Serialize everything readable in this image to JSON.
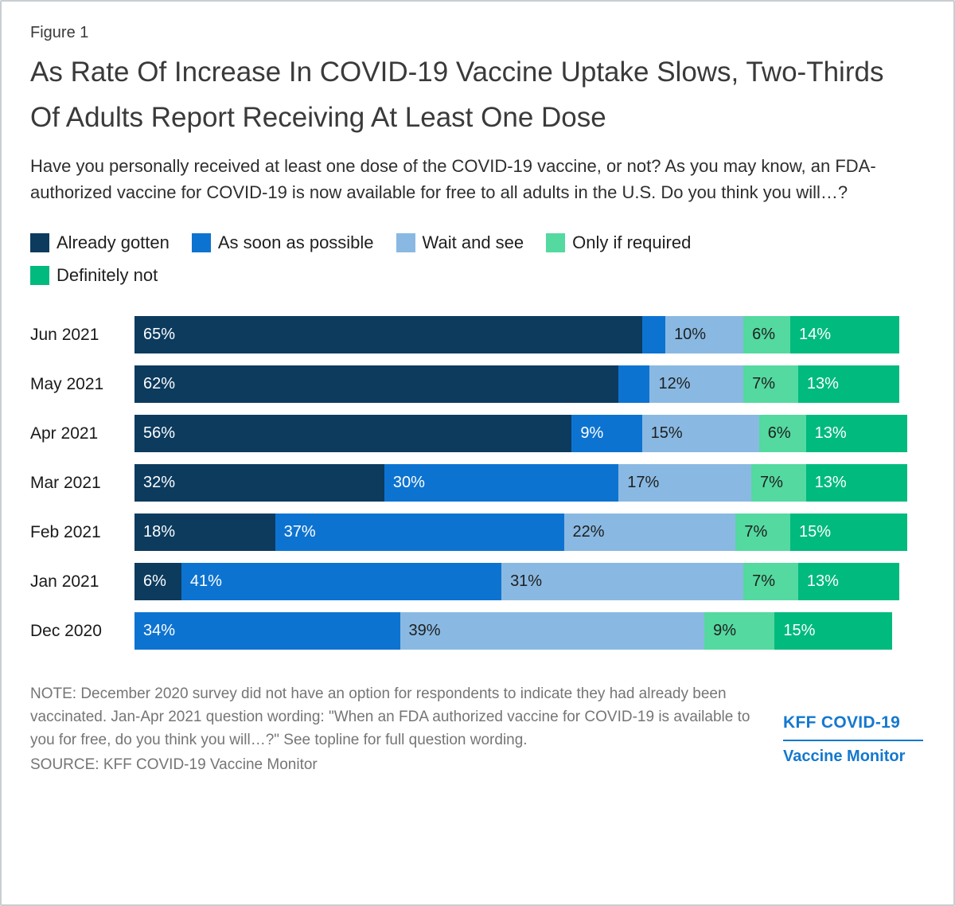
{
  "figure_label": "Figure 1",
  "title": "As Rate Of Increase In COVID-19 Vaccine Uptake Slows, Two-Thirds Of Adults Report Receiving At Least One Dose",
  "subtitle": "Have you personally received at least one dose of the COVID-19 vaccine, or not? As you may know, an FDA-authorized vaccine for COVID-19 is now available for free to all adults in the U.S. Do you think you will…?",
  "legend": [
    {
      "label": "Already gotten",
      "color": "#0c3b5e",
      "text_color": "#ffffff"
    },
    {
      "label": "As soon as possible",
      "color": "#0d73d1",
      "text_color": "#ffffff"
    },
    {
      "label": "Wait and see",
      "color": "#89b9e2",
      "text_color": "#1f1f1f"
    },
    {
      "label": "Only if required",
      "color": "#54d9a0",
      "text_color": "#1f1f1f"
    },
    {
      "label": "Definitely not",
      "color": "#00ba7e",
      "text_color": "#ffffff"
    }
  ],
  "chart_data": {
    "type": "bar",
    "orientation": "horizontal-stacked",
    "value_format": "percent",
    "x_axis_range": [
      0,
      100
    ],
    "grid": false,
    "legend_position": "top",
    "categories": [
      "Jun 2021",
      "May 2021",
      "Apr 2021",
      "Mar 2021",
      "Feb 2021",
      "Jan 2021",
      "Dec 2020"
    ],
    "series": [
      {
        "name": "Already gotten",
        "values": [
          65,
          62,
          56,
          32,
          18,
          6,
          null
        ]
      },
      {
        "name": "As soon as possible",
        "values": [
          3,
          4,
          9,
          30,
          37,
          41,
          34
        ]
      },
      {
        "name": "Wait and see",
        "values": [
          10,
          12,
          15,
          17,
          22,
          31,
          39
        ]
      },
      {
        "name": "Only if required",
        "values": [
          6,
          7,
          6,
          7,
          7,
          7,
          9
        ]
      },
      {
        "name": "Definitely not",
        "values": [
          14,
          13,
          13,
          13,
          15,
          13,
          15
        ]
      }
    ],
    "rows": [
      {
        "category": "Jun 2021",
        "segments": [
          {
            "series": "Already gotten",
            "value": 65,
            "label": "65%"
          },
          {
            "series": "As soon as possible",
            "value": 3,
            "label": ""
          },
          {
            "series": "Wait and see",
            "value": 10,
            "label": "10%"
          },
          {
            "series": "Only if required",
            "value": 6,
            "label": "6%"
          },
          {
            "series": "Definitely not",
            "value": 14,
            "label": "14%"
          }
        ]
      },
      {
        "category": "May 2021",
        "segments": [
          {
            "series": "Already gotten",
            "value": 62,
            "label": "62%"
          },
          {
            "series": "As soon as possible",
            "value": 4,
            "label": ""
          },
          {
            "series": "Wait and see",
            "value": 12,
            "label": "12%"
          },
          {
            "series": "Only if required",
            "value": 7,
            "label": "7%"
          },
          {
            "series": "Definitely not",
            "value": 13,
            "label": "13%"
          }
        ]
      },
      {
        "category": "Apr 2021",
        "segments": [
          {
            "series": "Already gotten",
            "value": 56,
            "label": "56%"
          },
          {
            "series": "As soon as possible",
            "value": 9,
            "label": "9%"
          },
          {
            "series": "Wait and see",
            "value": 15,
            "label": "15%"
          },
          {
            "series": "Only if required",
            "value": 6,
            "label": "6%"
          },
          {
            "series": "Definitely not",
            "value": 13,
            "label": "13%"
          }
        ]
      },
      {
        "category": "Mar 2021",
        "segments": [
          {
            "series": "Already gotten",
            "value": 32,
            "label": "32%"
          },
          {
            "series": "As soon as possible",
            "value": 30,
            "label": "30%"
          },
          {
            "series": "Wait and see",
            "value": 17,
            "label": "17%"
          },
          {
            "series": "Only if required",
            "value": 7,
            "label": "7%"
          },
          {
            "series": "Definitely not",
            "value": 13,
            "label": "13%"
          }
        ]
      },
      {
        "category": "Feb 2021",
        "segments": [
          {
            "series": "Already gotten",
            "value": 18,
            "label": "18%"
          },
          {
            "series": "As soon as possible",
            "value": 37,
            "label": "37%"
          },
          {
            "series": "Wait and see",
            "value": 22,
            "label": "22%"
          },
          {
            "series": "Only if required",
            "value": 7,
            "label": "7%"
          },
          {
            "series": "Definitely not",
            "value": 15,
            "label": "15%"
          }
        ]
      },
      {
        "category": "Jan 2021",
        "segments": [
          {
            "series": "Already gotten",
            "value": 6,
            "label": "6%"
          },
          {
            "series": "As soon as possible",
            "value": 41,
            "label": "41%"
          },
          {
            "series": "Wait and see",
            "value": 31,
            "label": "31%"
          },
          {
            "series": "Only if required",
            "value": 7,
            "label": "7%"
          },
          {
            "series": "Definitely not",
            "value": 13,
            "label": "13%"
          }
        ]
      },
      {
        "category": "Dec 2020",
        "segments": [
          {
            "series": "As soon as possible",
            "value": 34,
            "label": "34%"
          },
          {
            "series": "Wait and see",
            "value": 39,
            "label": "39%"
          },
          {
            "series": "Only if required",
            "value": 9,
            "label": "9%"
          },
          {
            "series": "Definitely not",
            "value": 15,
            "label": "15%"
          }
        ]
      }
    ]
  },
  "note": "NOTE: December 2020 survey did not have an option for respondents to indicate they had already been vaccinated. Jan-Apr 2021 question wording: \"When an FDA authorized vaccine for COVID-19 is available to you for free, do you think you will…?\" See topline for full question wording.",
  "source": "SOURCE: KFF COVID-19 Vaccine Monitor",
  "logo": {
    "line1": "KFF COVID-19",
    "line2": "Vaccine Monitor"
  }
}
